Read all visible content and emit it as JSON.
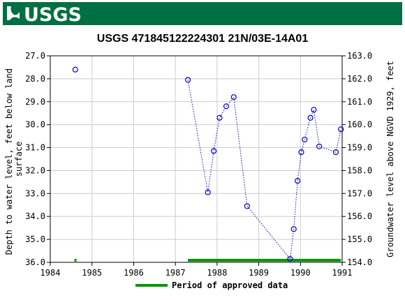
{
  "header": {
    "logo_text": "USGS",
    "banner_color": "#006f41"
  },
  "chart_data": {
    "type": "scatter",
    "title": "USGS 471845122224301 21N/03E-14A01",
    "xlabel": "",
    "ylabel_left_lines": [
      "Depth to water level, feet below land",
      "surface"
    ],
    "ylabel_right": "Groundwater level above NGVD 1929, feet",
    "xlim": [
      1984,
      1991
    ],
    "ylim_left": [
      36.0,
      27.0
    ],
    "ylim_right": [
      154.0,
      163.0
    ],
    "x_ticks": [
      "1984",
      "1985",
      "1986",
      "1987",
      "1988",
      "1989",
      "1990",
      "1991"
    ],
    "y_ticks_left": [
      "27.0",
      "28.0",
      "29.0",
      "30.0",
      "31.0",
      "32.0",
      "33.0",
      "34.0",
      "35.0",
      "36.0"
    ],
    "y_ticks_right": [
      "163.0",
      "162.0",
      "161.0",
      "160.0",
      "159.0",
      "158.0",
      "157.0",
      "156.0",
      "155.0",
      "154.0"
    ],
    "grid": true,
    "series": [
      {
        "color": "#0000cc",
        "marker": "circle",
        "line": "dotted",
        "points": [
          {
            "x": 1984.6,
            "y": 27.6,
            "connected": false
          },
          {
            "x": 1987.3,
            "y": 28.05,
            "connected": true
          },
          {
            "x": 1987.78,
            "y": 32.95,
            "connected": true
          },
          {
            "x": 1987.92,
            "y": 31.15,
            "connected": true
          },
          {
            "x": 1988.06,
            "y": 29.7,
            "connected": true
          },
          {
            "x": 1988.22,
            "y": 29.2,
            "connected": true
          },
          {
            "x": 1988.4,
            "y": 28.8,
            "connected": true
          },
          {
            "x": 1988.72,
            "y": 33.55,
            "connected": true
          },
          {
            "x": 1989.75,
            "y": 35.85,
            "connected": true
          },
          {
            "x": 1989.84,
            "y": 34.55,
            "connected": true
          },
          {
            "x": 1989.93,
            "y": 32.45,
            "connected": true
          },
          {
            "x": 1990.02,
            "y": 31.2,
            "connected": true
          },
          {
            "x": 1990.1,
            "y": 30.65,
            "connected": true
          },
          {
            "x": 1990.24,
            "y": 29.7,
            "connected": true
          },
          {
            "x": 1990.32,
            "y": 29.35,
            "connected": true
          },
          {
            "x": 1990.45,
            "y": 30.95,
            "connected": true
          },
          {
            "x": 1990.85,
            "y": 31.2,
            "connected": true
          },
          {
            "x": 1990.97,
            "y": 30.2,
            "connected": true
          }
        ]
      }
    ],
    "approved_periods": [
      {
        "start": 1984.58,
        "end": 1984.62
      },
      {
        "start": 1987.3,
        "end": 1990.97
      }
    ],
    "approved_color": "#009900",
    "legend": {
      "label": "Period of approved data",
      "placement": "bottom"
    }
  }
}
